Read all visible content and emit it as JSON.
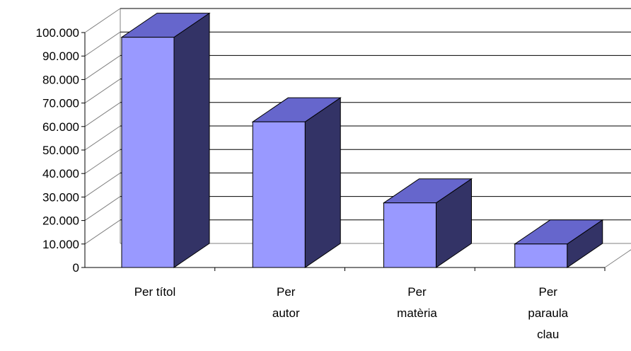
{
  "chart_data": {
    "type": "bar",
    "style": "3d-column",
    "categories": [
      [
        "Per títol"
      ],
      [
        "Per",
        "autor"
      ],
      [
        "Per",
        "matèria"
      ],
      [
        "Per",
        "paraula",
        "clau"
      ]
    ],
    "series": [
      {
        "values": [
          98000,
          62000,
          27500,
          10000
        ]
      }
    ],
    "yticks": [
      "0",
      "10.000",
      "20.000",
      "30.000",
      "40.000",
      "50.000",
      "60.000",
      "70.000",
      "80.000",
      "90.000",
      "100.000"
    ],
    "ylim": [
      0,
      100000
    ],
    "grid": true,
    "legend": "none",
    "title": "",
    "xlabel": "",
    "ylabel": "",
    "colors": {
      "front": "#9999ff",
      "top": "#6666cc",
      "side": "#333366",
      "grid": "#000000",
      "wall": "#808080"
    }
  }
}
